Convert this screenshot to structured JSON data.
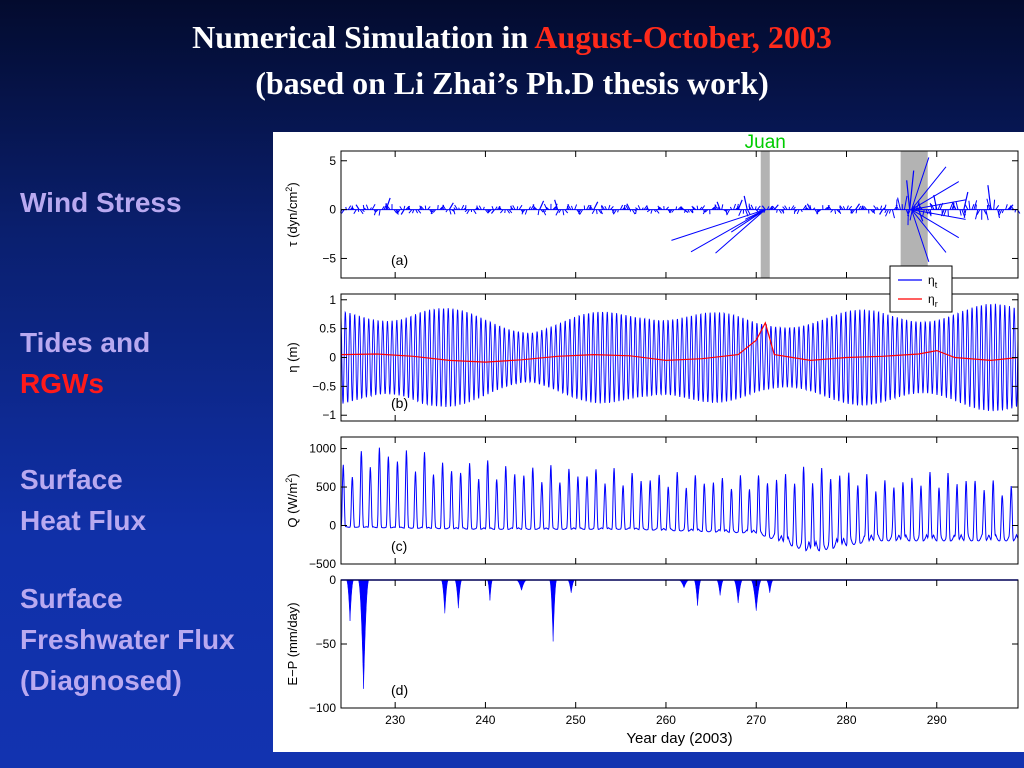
{
  "title": {
    "line1_prefix": "Numerical Simulation in ",
    "line1_highlight": "August-October, 2003",
    "line2": "(based on Li Zhai’s Ph.D thesis work)"
  },
  "side_labels": {
    "wind_stress": "Wind Stress",
    "tides_line1": "Tides and",
    "tides_line2": "RGWs",
    "heat_line1": "Surface",
    "heat_line2": "Heat Flux",
    "fresh_line1": "Surface",
    "fresh_line2": "Freshwater Flux",
    "fresh_line3": "(Diagnosed)"
  },
  "colors": {
    "highlight": "#ff2a1a",
    "series_blue": "#0000ff",
    "series_red": "#ff0000",
    "side_text": "#b9a9f0",
    "annotation": "#00cc00"
  },
  "chart_data": [
    {
      "panel": "(a)",
      "type": "line",
      "ylabel": "τ (dyn/cm2)",
      "ylim": [
        -7,
        6
      ],
      "yticks": [
        -5,
        0,
        5
      ],
      "xlim": [
        224,
        299
      ],
      "annotations": [
        {
          "label": "Juan",
          "event_day": 271
        }
      ],
      "shaded_spans": [
        [
          270.5,
          271.5
        ],
        [
          286,
          289
        ]
      ],
      "series": [
        {
          "name": "",
          "color": "#0000ff",
          "style": "stick",
          "x": [
            226,
            229,
            231,
            236,
            241,
            246,
            248,
            252,
            256,
            262,
            266,
            268,
            269,
            270,
            271,
            272,
            276,
            281,
            284,
            287,
            287,
            288,
            290,
            293,
            296,
            298
          ],
          "y": [
            0.5,
            1.2,
            -0.5,
            0.7,
            -0.4,
            0.9,
            1.0,
            0.8,
            0.6,
            -0.3,
            0.8,
            1.0,
            1.4,
            -0.5,
            0.4,
            0.5,
            0.6,
            0.6,
            -0.5,
            4.0,
            3.0,
            -1.2,
            1.5,
            1.8,
            2.5,
            0.5
          ]
        }
      ]
    },
    {
      "panel": "(b)",
      "type": "line",
      "ylabel": "η (m)",
      "ylim": [
        -1.1,
        1.1
      ],
      "yticks": [
        -1,
        -0.5,
        0,
        0.5,
        1
      ],
      "xlim": [
        224,
        299
      ],
      "legend": {
        "placement": "top-right",
        "entries": [
          {
            "label": "η",
            "sub": "t",
            "color": "#0000ff"
          },
          {
            "label": "η",
            "sub": "r",
            "color": "#ff0000"
          }
        ]
      },
      "series": [
        {
          "name": "η_t",
          "color": "#0000ff",
          "amplitude_days": [
            224,
            233,
            245,
            258,
            270,
            283,
            299
          ],
          "amplitude_values": [
            0.85,
            0.95,
            0.6,
            0.95,
            0.7,
            0.85,
            0.95
          ]
        },
        {
          "name": "η_r",
          "color": "#ff0000",
          "x": [
            224,
            228,
            232,
            236,
            240,
            244,
            248,
            252,
            256,
            260,
            264,
            268,
            270,
            271,
            272,
            276,
            280,
            284,
            288,
            290,
            292,
            296,
            299
          ],
          "y": [
            0.05,
            0.06,
            0.02,
            -0.05,
            -0.08,
            -0.04,
            0.02,
            0.05,
            0.03,
            -0.05,
            -0.02,
            0.05,
            0.3,
            0.6,
            0.05,
            -0.05,
            0.0,
            0.02,
            0.06,
            0.12,
            0.0,
            -0.05,
            0.0
          ]
        }
      ]
    },
    {
      "panel": "(c)",
      "type": "line",
      "ylabel": "Q (W/m2)",
      "ylim": [
        -500,
        1150
      ],
      "yticks": [
        -500,
        0,
        500,
        1000
      ],
      "xlim": [
        224,
        299
      ],
      "series": [
        {
          "name": "",
          "color": "#0000ff",
          "peak_days": [
            224,
            228,
            232,
            236,
            240,
            244,
            248,
            252,
            256,
            260,
            264,
            268,
            272,
            276,
            280,
            284,
            288,
            292,
            296,
            299
          ],
          "peak_values": [
            800,
            1100,
            1000,
            850,
            850,
            800,
            780,
            780,
            720,
            700,
            680,
            650,
            700,
            780,
            760,
            600,
            700,
            700,
            600,
            500
          ],
          "trough_days": [
            224,
            240,
            256,
            270,
            276,
            283,
            290,
            299
          ],
          "trough_values": [
            -20,
            -50,
            -50,
            -100,
            -350,
            -200,
            -200,
            -200
          ]
        }
      ]
    },
    {
      "panel": "(d)",
      "type": "area",
      "ylabel": "E−P (mm/day)",
      "ylim": [
        -100,
        0
      ],
      "yticks": [
        -100,
        -50,
        0
      ],
      "xlim": [
        224,
        299
      ],
      "xlabel": "Year day (2003)",
      "xticks": [
        230,
        240,
        250,
        260,
        270,
        280,
        290
      ],
      "series": [
        {
          "name": "",
          "color": "#0000ff",
          "event_days": [
            225,
            226.5,
            235.5,
            237,
            240.5,
            244,
            247.5,
            249.5,
            262,
            263.5,
            266,
            268,
            270,
            271.5
          ],
          "event_values": [
            -32,
            -85,
            -26,
            -22,
            -16,
            -8,
            -48,
            -10,
            -6,
            -20,
            -12,
            -18,
            -24,
            -10
          ],
          "event_widths": [
            0.8,
            1.2,
            0.8,
            0.8,
            0.6,
            1.2,
            0.8,
            0.8,
            1.2,
            0.8,
            0.8,
            1.0,
            1.2,
            0.8
          ]
        }
      ]
    }
  ]
}
